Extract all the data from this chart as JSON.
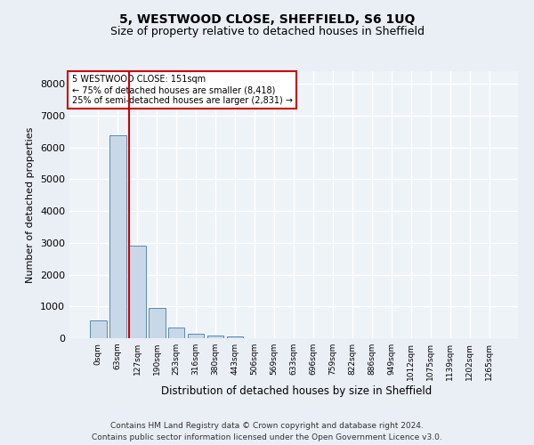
{
  "title": "5, WESTWOOD CLOSE, SHEFFIELD, S6 1UQ",
  "subtitle": "Size of property relative to detached houses in Sheffield",
  "xlabel": "Distribution of detached houses by size in Sheffield",
  "ylabel": "Number of detached properties",
  "bin_labels": [
    "0sqm",
    "63sqm",
    "127sqm",
    "190sqm",
    "253sqm",
    "316sqm",
    "380sqm",
    "443sqm",
    "506sqm",
    "569sqm",
    "633sqm",
    "696sqm",
    "759sqm",
    "822sqm",
    "886sqm",
    "949sqm",
    "1012sqm",
    "1075sqm",
    "1139sqm",
    "1202sqm",
    "1265sqm"
  ],
  "bar_values": [
    570,
    6380,
    2900,
    960,
    340,
    150,
    90,
    70,
    0,
    0,
    0,
    0,
    0,
    0,
    0,
    0,
    0,
    0,
    0,
    0,
    0
  ],
  "bar_color": "#c8d8e8",
  "bar_edge_color": "#5a8ab0",
  "annotation_title": "5 WESTWOOD CLOSE: 151sqm",
  "annotation_line1": "← 75% of detached houses are smaller (8,418)",
  "annotation_line2": "25% of semi-detached houses are larger (2,831) →",
  "annotation_box_color": "#cc0000",
  "property_line_bin": 2,
  "ylim": [
    0,
    8400
  ],
  "yticks": [
    0,
    1000,
    2000,
    3000,
    4000,
    5000,
    6000,
    7000,
    8000
  ],
  "footer_line1": "Contains HM Land Registry data © Crown copyright and database right 2024.",
  "footer_line2": "Contains public sector information licensed under the Open Government Licence v3.0.",
  "bg_color": "#eaeff5",
  "plot_bg_color": "#eef3f8"
}
